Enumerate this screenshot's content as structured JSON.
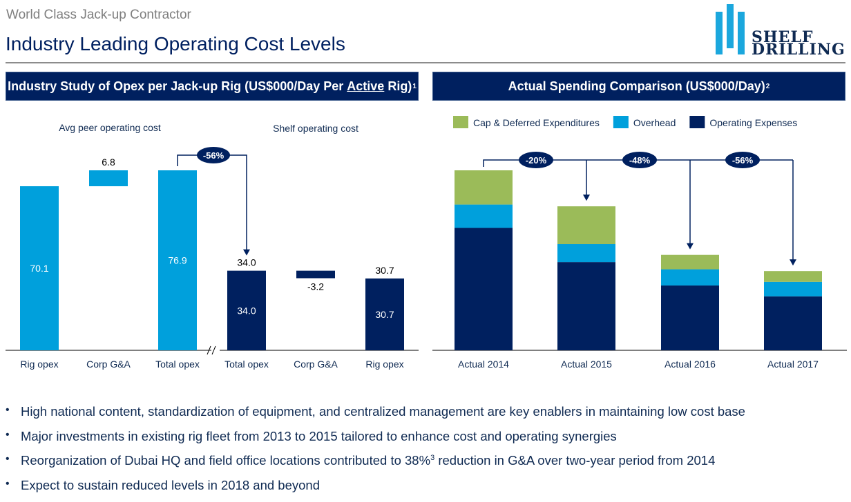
{
  "header": {
    "supertitle": "World Class Jack-up Contractor",
    "title": "Industry Leading Operating Cost Levels",
    "logo": {
      "line1": "SHELF",
      "line2": "DRILLING",
      "icon": "shelf-drilling-bars-logo"
    }
  },
  "colors": {
    "navy": "#00205f",
    "cyan": "#00a0dc",
    "green": "#9bbb59",
    "grey_text": "#7f7f7f"
  },
  "left_panel": {
    "title_pre": "Industry Study of Opex per Jack-up Rig (US$000/Day Per ",
    "title_underlined": "Active",
    "title_post": " Rig)",
    "title_footnote": "1",
    "group_labels": [
      "Avg peer operating cost",
      "Shelf operating cost"
    ]
  },
  "right_panel": {
    "title": "Actual Spending Comparison (US$000/Day)",
    "title_footnote": "2"
  },
  "chart_data": [
    {
      "type": "bar",
      "subtype": "waterfall",
      "title": "Industry Study of Opex per Jack-up Rig (US$000/Day Per Active Rig)",
      "categories": [
        "Rig opex",
        "Corp G&A",
        "Total opex",
        "Total opex",
        "Corp G&A",
        "Rig opex"
      ],
      "groups": [
        "Avg peer operating cost",
        "Avg peer operating cost",
        "Avg peer operating cost",
        "Shelf operating cost",
        "Shelf operating cost",
        "Shelf operating cost"
      ],
      "values": [
        70.1,
        6.8,
        76.9,
        34.0,
        -3.2,
        30.7
      ],
      "bar_kind": [
        "total",
        "delta",
        "total",
        "total",
        "delta",
        "total"
      ],
      "series_colors": [
        "#00a0dc",
        "#00a0dc",
        "#00a0dc",
        "#00205f",
        "#00205f",
        "#00205f"
      ],
      "inner_labels": [
        "70.1",
        "",
        "76.9",
        "34.0",
        "",
        "30.7"
      ],
      "outer_labels": [
        "",
        "6.8",
        "",
        "34.0",
        "-3.2",
        "30.7"
      ],
      "axis_break_between": [
        2,
        3
      ],
      "annotations": [
        {
          "label": "-56%",
          "from": 2,
          "to": 3
        }
      ],
      "ylim": [
        0,
        80
      ],
      "xlabel": "",
      "ylabel": "",
      "grid": false,
      "legend": "none"
    },
    {
      "type": "bar",
      "subtype": "stacked",
      "title": "Actual Spending Comparison (US$000/Day)",
      "categories": [
        "Actual 2014",
        "Actual 2015",
        "Actual 2016",
        "Actual 2017"
      ],
      "value_units": "relative index (2014 total = 100), estimated; no value labels shown",
      "series": [
        {
          "name": "Operating Expenses",
          "color": "#00205f",
          "values": [
            68,
            49,
            36,
            30
          ]
        },
        {
          "name": "Overhead",
          "color": "#00a0dc",
          "values": [
            13,
            10,
            9,
            8
          ]
        },
        {
          "name": "Cap & Deferred Expenditures",
          "color": "#9bbb59",
          "values": [
            19,
            21,
            8,
            6
          ]
        }
      ],
      "legend_order": [
        "Cap & Deferred Expenditures",
        "Overhead",
        "Operating Expenses"
      ],
      "annotations": [
        {
          "label": "-20%",
          "from": 0,
          "to": 1
        },
        {
          "label": "-48%",
          "from": 0,
          "to": 2
        },
        {
          "label": "-56%",
          "from": 0,
          "to": 3
        }
      ],
      "ylim": [
        0,
        105
      ],
      "xlabel": "",
      "ylabel": "",
      "grid": false,
      "legend": "top"
    }
  ],
  "bullets": [
    {
      "text": "High national content, standardization of equipment, and centralized management are key enablers in maintaining low cost base"
    },
    {
      "text": "Major investments in existing rig fleet from 2013 to 2015 tailored to enhance cost and operating synergies"
    },
    {
      "pre": "Reorganization of Dubai HQ and field office locations contributed to 38%",
      "sup": "3",
      "post": " reduction in G&A over two-year period from 2014"
    },
    {
      "text": "Expect to sustain reduced levels in 2018 and beyond"
    }
  ]
}
